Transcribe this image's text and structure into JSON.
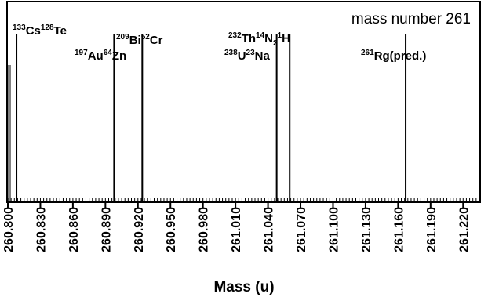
{
  "chart_data": {
    "type": "bar",
    "title": "",
    "annotation": "mass number 261",
    "xlabel": "Mass (u)",
    "ylabel": "",
    "xlim": [
      260.8,
      261.235
    ],
    "ylim": [
      0,
      1
    ],
    "grid": false,
    "tick_labels": [
      "260.800",
      "260.830",
      "260.860",
      "260.890",
      "260.920",
      "260.950",
      "260.980",
      "261.010",
      "261.040",
      "261.070",
      "261.100",
      "261.130",
      "261.160",
      "261.190",
      "261.220"
    ],
    "ticks": [
      260.8,
      260.83,
      260.86,
      260.89,
      260.92,
      260.95,
      260.98,
      261.01,
      261.04,
      261.07,
      261.1,
      261.13,
      261.16,
      261.19,
      261.22
    ],
    "peaks": [
      {
        "x": 260.808,
        "y": 0.84,
        "label": [
          {
            "t": "133",
            "sup": true
          },
          {
            "t": "Cs",
            "sup": false
          },
          {
            "t": "128",
            "sup": true
          },
          {
            "t": "Te",
            "sup": false
          }
        ]
      },
      {
        "x": 260.898,
        "y": 0.84,
        "label": [
          {
            "t": "197",
            "sup": true
          },
          {
            "t": "Au",
            "sup": false
          },
          {
            "t": "64",
            "sup": true
          },
          {
            "t": "Zn",
            "sup": false
          }
        ]
      },
      {
        "x": 260.924,
        "y": 0.84,
        "label": [
          {
            "t": "209",
            "sup": true
          },
          {
            "t": "Bi",
            "sup": false
          },
          {
            "t": "52",
            "sup": true
          },
          {
            "t": "Cr",
            "sup": false
          }
        ]
      },
      {
        "x": 261.048,
        "y": 0.84,
        "label": [
          {
            "t": "238",
            "sup": true
          },
          {
            "t": "U",
            "sup": false
          },
          {
            "t": "23",
            "sup": true
          },
          {
            "t": "Na",
            "sup": false
          }
        ]
      },
      {
        "x": 261.06,
        "y": 0.84,
        "label": [
          {
            "t": "232",
            "sup": true
          },
          {
            "t": "Th",
            "sup": false
          },
          {
            "t": "14",
            "sup": true
          },
          {
            "t": "N",
            "sup": false
          },
          {
            "t": "2",
            "sub": true
          },
          {
            "t": "1",
            "sup": true
          },
          {
            "t": "H",
            "sup": false
          }
        ]
      },
      {
        "x": 261.167,
        "y": 0.84,
        "label": [
          {
            "t": "261",
            "sup": true
          },
          {
            "t": "Rg(pred.)",
            "sup": false
          }
        ]
      }
    ]
  }
}
